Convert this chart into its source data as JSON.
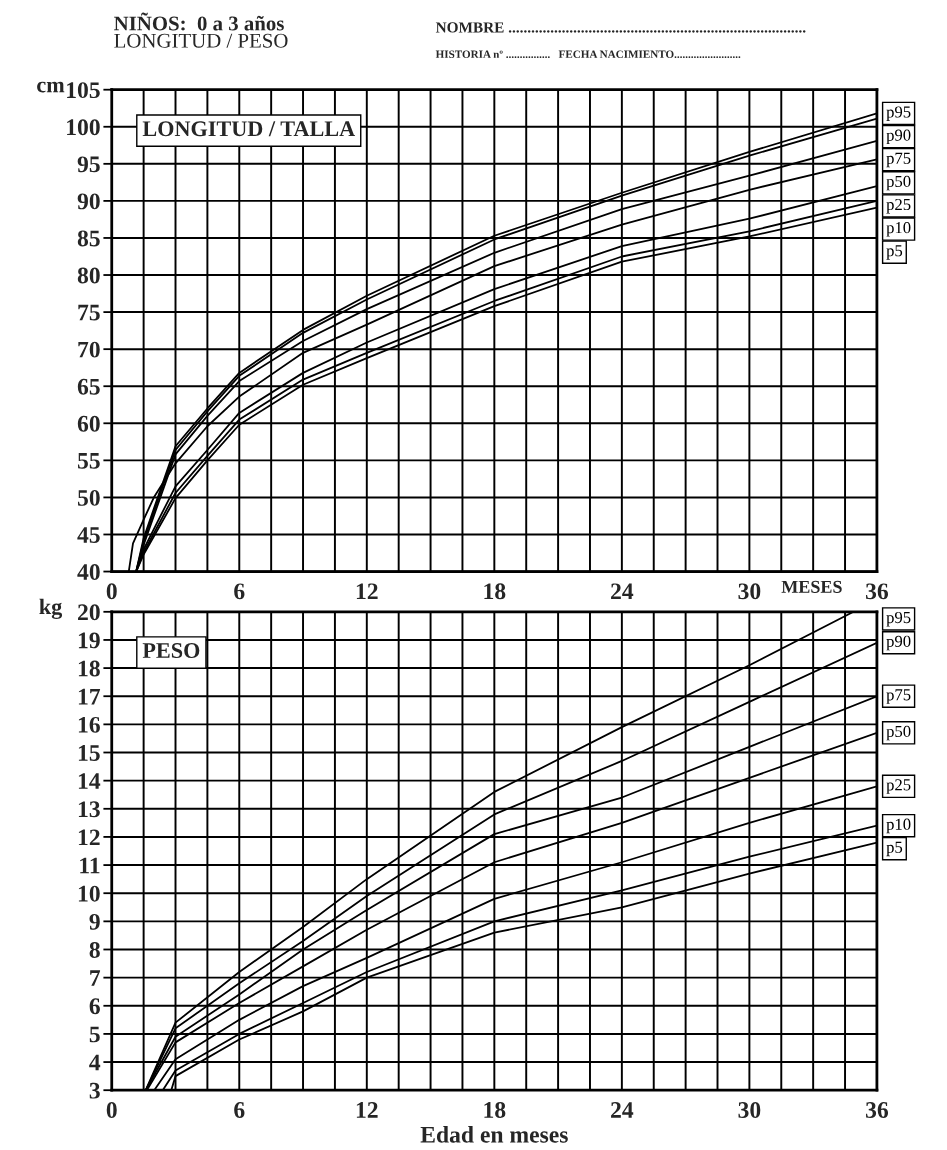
{
  "chart_data": [
    {
      "type": "line",
      "title": "LONGITUD / TALLA",
      "xlabel": "MESES",
      "ylabel": "cm",
      "annotations": [
        "NIÑOS:  0 a 3 años",
        "LONGITUD / PESO",
        "NOMBRE ..............................................................................",
        "HISTORIA nº ................   FECHA NACIMIENTO........................"
      ],
      "xlim": [
        0,
        36
      ],
      "ylim": [
        40,
        105
      ],
      "xticks": [
        0,
        {
          "value": 1.5,
          "label": null
        },
        {
          "value": 3,
          "label": null
        },
        {
          "value": 4.5,
          "label": null
        },
        6,
        {
          "value": 7.5,
          "label": null
        },
        {
          "value": 9,
          "label": null
        },
        {
          "value": 10.5,
          "label": null
        },
        12,
        {
          "value": 13.5,
          "label": null
        },
        {
          "value": 15,
          "label": null
        },
        {
          "value": 16.5,
          "label": null
        },
        18,
        {
          "value": 19.5,
          "label": null
        },
        {
          "value": 21,
          "label": null
        },
        {
          "value": 22.5,
          "label": null
        },
        24,
        {
          "value": 25.5,
          "label": null
        },
        {
          "value": 27,
          "label": null
        },
        {
          "value": 28.5,
          "label": null
        },
        30,
        {
          "value": 31.5,
          "label": null
        },
        {
          "value": 33,
          "label": null
        },
        {
          "value": 34.5,
          "label": null
        },
        36
      ],
      "yticks": [
        40,
        45,
        50,
        55,
        60,
        65,
        70,
        75,
        80,
        85,
        90,
        95,
        100,
        105
      ],
      "grid": true,
      "legend": "right",
      "series": [
        {
          "name": "p95",
          "color": "#000000",
          "x": [
            1.15,
            1.5,
            3,
            4.5,
            6,
            9,
            12,
            18,
            24,
            30,
            36
          ],
          "values": [
            40,
            44.5,
            56.9,
            62.0,
            66.8,
            72.6,
            77.2,
            85.3,
            91.1,
            96.6,
            101.8
          ]
        },
        {
          "name": "p90",
          "color": "#000000",
          "x": [
            1.15,
            1.5,
            3,
            4.5,
            6,
            9,
            12,
            18,
            24,
            30,
            36
          ],
          "values": [
            40,
            44.1,
            56.4,
            61.6,
            66.4,
            72.2,
            76.7,
            84.8,
            90.7,
            96.1,
            101.1
          ]
        },
        {
          "name": "p75",
          "color": "#000000",
          "x": [
            1.15,
            1.5,
            3,
            4.5,
            6,
            9,
            12,
            18,
            24,
            30,
            36
          ],
          "values": [
            40,
            43.6,
            55.8,
            61.0,
            65.7,
            71.1,
            75.4,
            83.0,
            88.9,
            93.4,
            98.1
          ]
        },
        {
          "name": "p50",
          "color": "#000000",
          "x": [
            0.8,
            1,
            1.5,
            2,
            3,
            4.5,
            6,
            9,
            12,
            18,
            24,
            30,
            36
          ],
          "values": [
            40,
            43.8,
            47,
            50.1,
            54.6,
            59.6,
            63.6,
            69.5,
            73.3,
            81.2,
            86.8,
            91.5,
            95.6
          ]
        },
        {
          "name": "p25",
          "color": "#000000",
          "x": [
            1.15,
            1.5,
            3,
            4.5,
            6,
            9,
            12,
            18,
            24,
            30,
            36
          ],
          "values": [
            40,
            43.0,
            51.5,
            56.4,
            61.4,
            66.8,
            70.9,
            78.1,
            83.9,
            87.6,
            92.0
          ]
        },
        {
          "name": "p10",
          "color": "#000000",
          "x": [
            1.15,
            1.5,
            3,
            4.5,
            6,
            9,
            12,
            18,
            24,
            30,
            36
          ],
          "values": [
            40,
            42.6,
            50.6,
            55.6,
            60.5,
            65.9,
            69.5,
            76.5,
            82.5,
            85.9,
            90.0
          ]
        },
        {
          "name": "p5",
          "color": "#000000",
          "x": [
            1.15,
            1.5,
            3,
            4.5,
            6,
            9,
            12,
            18,
            24,
            30,
            36
          ],
          "values": [
            40,
            42.3,
            49.9,
            55.0,
            59.8,
            65.2,
            68.8,
            75.8,
            81.8,
            85.2,
            89.1
          ]
        }
      ]
    },
    {
      "type": "line",
      "title": "PESO",
      "xlabel": "Edad en meses",
      "ylabel": "kg",
      "xlim": [
        0,
        36
      ],
      "ylim": [
        3,
        20
      ],
      "xticks": [
        0,
        {
          "value": 1.5,
          "label": null
        },
        {
          "value": 3,
          "label": null
        },
        {
          "value": 4.5,
          "label": null
        },
        6,
        {
          "value": 7.5,
          "label": null
        },
        {
          "value": 9,
          "label": null
        },
        {
          "value": 10.5,
          "label": null
        },
        12,
        {
          "value": 13.5,
          "label": null
        },
        {
          "value": 15,
          "label": null
        },
        {
          "value": 16.5,
          "label": null
        },
        18,
        {
          "value": 19.5,
          "label": null
        },
        {
          "value": 21,
          "label": null
        },
        {
          "value": 22.5,
          "label": null
        },
        24,
        {
          "value": 25.5,
          "label": null
        },
        {
          "value": 27,
          "label": null
        },
        {
          "value": 28.5,
          "label": null
        },
        30,
        {
          "value": 31.5,
          "label": null
        },
        {
          "value": 33,
          "label": null
        },
        {
          "value": 34.5,
          "label": null
        },
        36
      ],
      "yticks": [
        3,
        4,
        5,
        6,
        7,
        8,
        9,
        10,
        11,
        12,
        13,
        14,
        15,
        16,
        17,
        18,
        19,
        20
      ],
      "grid": true,
      "legend": "right",
      "series": [
        {
          "name": "p95",
          "color": "#000000",
          "x": [
            1.6,
            3,
            6,
            9,
            12,
            18,
            24,
            30,
            34.9
          ],
          "values": [
            3,
            5.4,
            7.2,
            8.8,
            10.5,
            13.6,
            15.9,
            18.1,
            20
          ]
        },
        {
          "name": "p90",
          "color": "#000000",
          "x": [
            1.6,
            3,
            6,
            9,
            12,
            18,
            24,
            30,
            36
          ],
          "values": [
            3,
            5.2,
            6.8,
            8.3,
            9.9,
            12.8,
            14.7,
            16.8,
            18.9
          ]
        },
        {
          "name": "p75",
          "color": "#000000",
          "x": [
            1.6,
            3,
            6,
            9,
            12,
            18,
            24,
            30,
            36
          ],
          "values": [
            3,
            4.9,
            6.4,
            8.0,
            9.4,
            12.1,
            13.4,
            15.2,
            17.0
          ]
        },
        {
          "name": "p50",
          "color": "#000000",
          "x": [
            1.65,
            3,
            6,
            9,
            12,
            18,
            24,
            30,
            36
          ],
          "values": [
            3,
            4.7,
            6.1,
            7.4,
            8.7,
            11.1,
            12.5,
            14.1,
            15.7
          ]
        },
        {
          "name": "p25",
          "color": "#000000",
          "x": [
            2.0,
            3,
            6,
            9,
            12,
            18,
            24,
            30,
            36
          ],
          "values": [
            3,
            4.1,
            5.5,
            6.7,
            7.7,
            9.8,
            11.1,
            12.5,
            13.8
          ]
        },
        {
          "name": "p10",
          "color": "#000000",
          "x": [
            2.4,
            3,
            6,
            9,
            12,
            18,
            24,
            30,
            36
          ],
          "values": [
            3,
            3.7,
            5.0,
            6.1,
            7.2,
            9.0,
            10.1,
            11.3,
            12.4
          ]
        },
        {
          "name": "p5",
          "color": "#000000",
          "x": [
            2.8,
            3,
            6,
            9,
            12,
            18,
            24,
            30,
            36
          ],
          "values": [
            3,
            3.5,
            4.8,
            5.8,
            7.0,
            8.6,
            9.5,
            10.7,
            11.8
          ]
        }
      ]
    }
  ]
}
